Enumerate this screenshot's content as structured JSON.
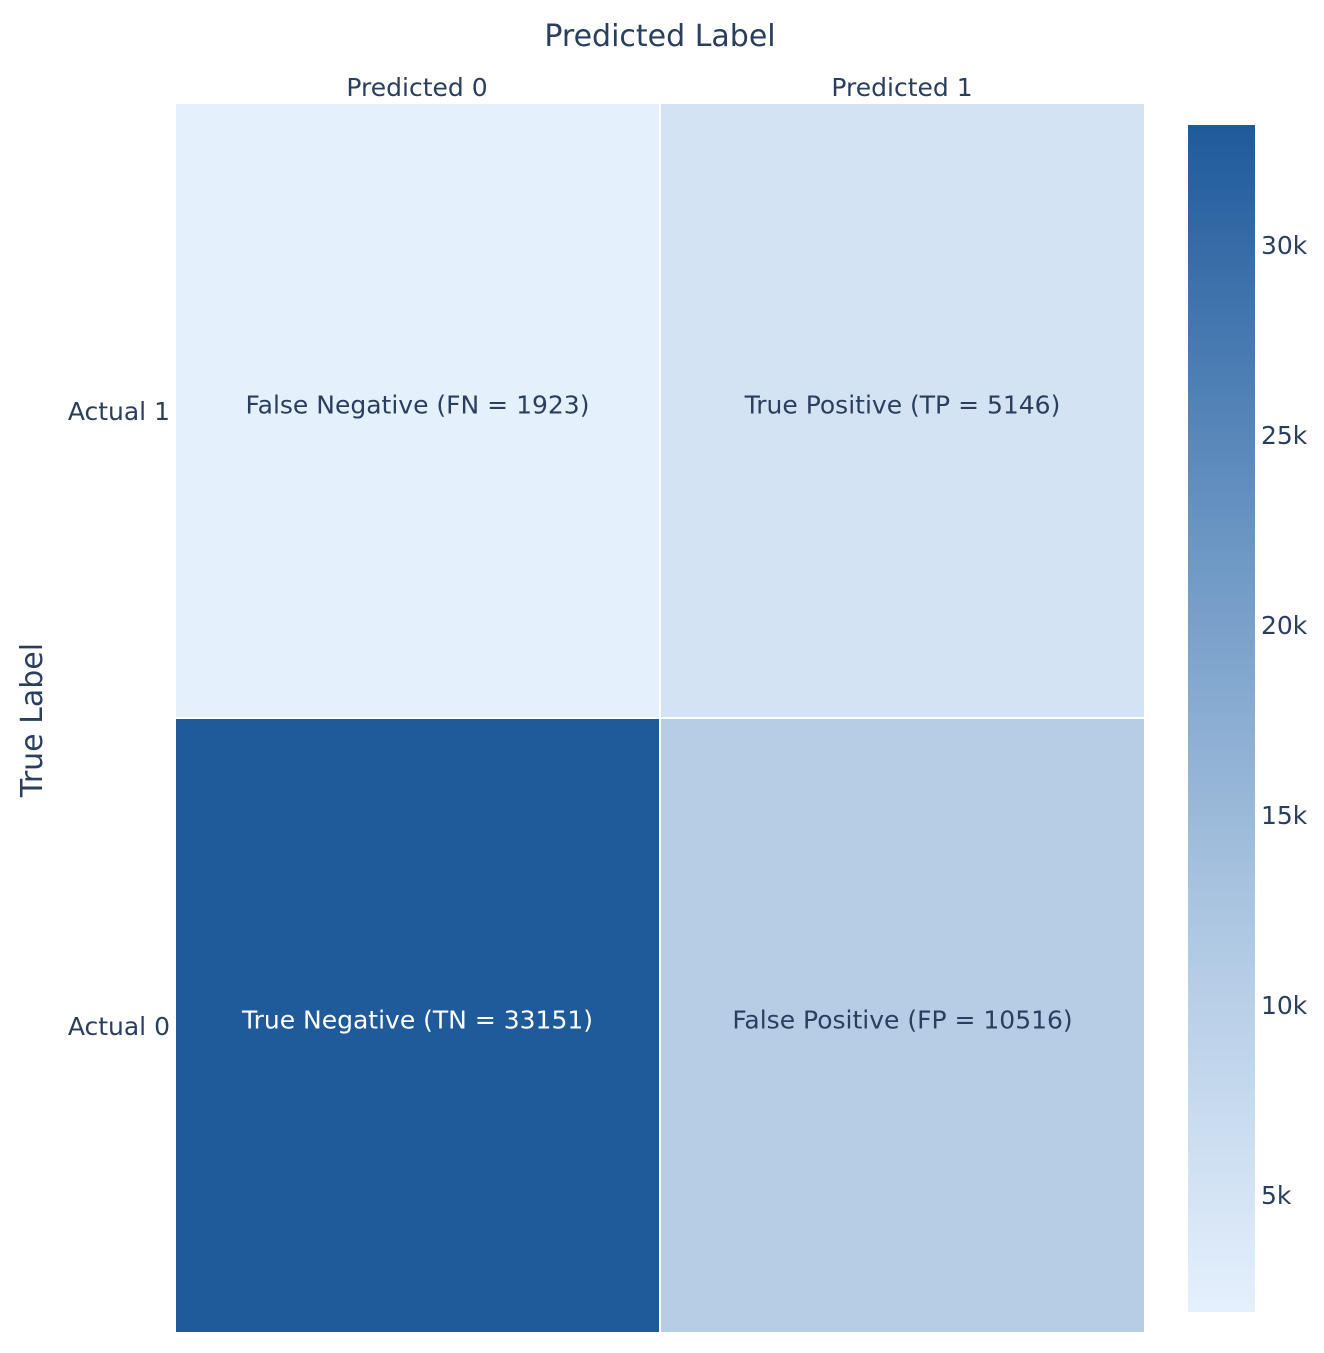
{
  "chart_data": {
    "type": "heatmap",
    "title": "",
    "xlabel": "Predicted Label",
    "ylabel": "True Label",
    "x_categories": [
      "Predicted 0",
      "Predicted 1"
    ],
    "y_categories": [
      "Actual 1",
      "Actual 0"
    ],
    "z": [
      [
        1923,
        5146
      ],
      [
        33151,
        10516
      ]
    ],
    "annotations": [
      [
        "False Negative (FN = 1923)",
        "True Positive (TP = 5146)"
      ],
      [
        "True Negative (TN = 33151)",
        "False Positive (FP = 10516)"
      ]
    ],
    "x_axis_position": "top",
    "colorscale": "Blues",
    "colorscale_low": "#e5f0fd",
    "colorscale_high": "#1f5a9b",
    "text_color_light_cells": "#2a3f5f",
    "text_color_dark_cells": "#ffffff",
    "zrange": [
      1923,
      33151
    ],
    "colorbar": {
      "ticks": [
        5000,
        10000,
        15000,
        20000,
        25000,
        30000
      ],
      "tick_labels": [
        "5k",
        "10k",
        "15k",
        "20k",
        "25k",
        "30k"
      ],
      "placement": "right"
    }
  }
}
